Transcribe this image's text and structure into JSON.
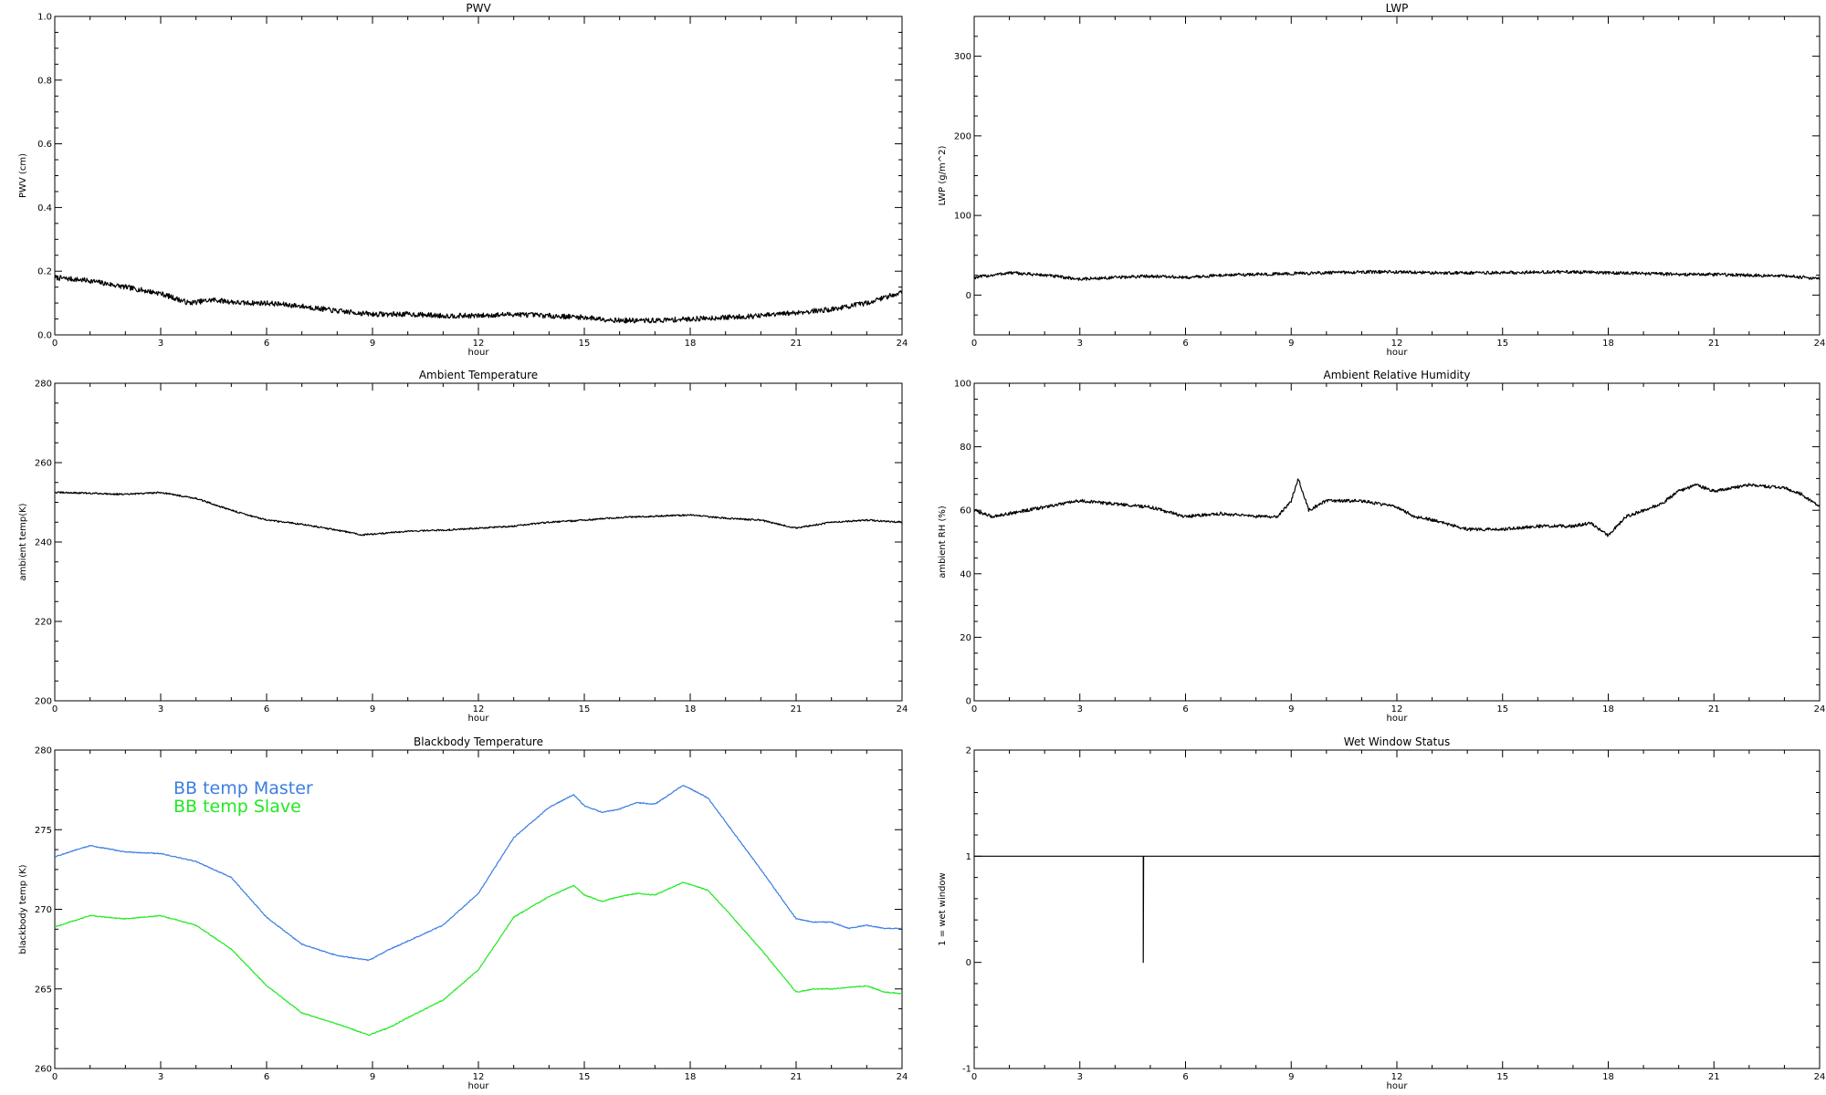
{
  "chart_data": [
    {
      "type": "line",
      "title": "PWV",
      "xlabel": "hour",
      "ylabel": "PWV (cm)",
      "xlim": [
        0,
        24
      ],
      "ylim": [
        0,
        1
      ],
      "x_ticks": [
        0,
        3,
        6,
        9,
        12,
        15,
        18,
        21,
        24
      ],
      "y_ticks": [
        "0.0",
        "0.2",
        "0.4",
        "0.6",
        "0.8",
        "1.0"
      ],
      "noise": 0.008,
      "series": [
        {
          "color": "#000000",
          "x": [
            0,
            1,
            2,
            3,
            3.8,
            4.5,
            5.3,
            6,
            7,
            8,
            9,
            10,
            11,
            12,
            13,
            14,
            15,
            16,
            17,
            18,
            19,
            20,
            21,
            22,
            23,
            24
          ],
          "y": [
            0.18,
            0.17,
            0.15,
            0.13,
            0.1,
            0.11,
            0.1,
            0.1,
            0.09,
            0.075,
            0.065,
            0.065,
            0.06,
            0.06,
            0.065,
            0.06,
            0.055,
            0.045,
            0.045,
            0.05,
            0.055,
            0.06,
            0.07,
            0.08,
            0.1,
            0.135
          ]
        }
      ]
    },
    {
      "type": "line",
      "title": "LWP",
      "xlabel": "hour",
      "ylabel": "LWP (g/m^2)",
      "xlim": [
        0,
        24
      ],
      "ylim": [
        -50,
        350
      ],
      "x_ticks": [
        0,
        3,
        6,
        9,
        12,
        15,
        18,
        21,
        24
      ],
      "y_ticks": [
        "0",
        "100",
        "200",
        "300"
      ],
      "noise": 2,
      "series": [
        {
          "color": "#000000",
          "x": [
            0,
            1,
            2,
            3,
            4,
            5,
            6,
            7,
            8,
            9,
            10,
            11,
            12,
            13,
            14,
            15,
            16,
            17,
            18,
            19,
            20,
            21,
            22,
            23,
            24
          ],
          "y": [
            22,
            28,
            25,
            20,
            22,
            24,
            22,
            25,
            26,
            27,
            28,
            29,
            29,
            28,
            28,
            28,
            29,
            29,
            28,
            27,
            26,
            26,
            25,
            24,
            21
          ]
        }
      ]
    },
    {
      "type": "line",
      "title": "Ambient Temperature",
      "xlabel": "hour",
      "ylabel": "ambient temp(K)",
      "xlim": [
        0,
        24
      ],
      "ylim": [
        200,
        280
      ],
      "x_ticks": [
        0,
        3,
        6,
        9,
        12,
        15,
        18,
        21,
        24
      ],
      "y_ticks": [
        "200",
        "220",
        "240",
        "260",
        "280"
      ],
      "noise": 0.2,
      "series": [
        {
          "color": "#000000",
          "x": [
            0,
            1,
            2,
            3,
            4,
            5,
            6,
            7,
            8,
            8.7,
            9,
            10,
            11,
            12,
            13,
            14,
            15,
            16,
            17,
            18,
            19,
            20,
            21,
            22,
            23,
            24
          ],
          "y": [
            252.5,
            252.3,
            252,
            252.5,
            251,
            248,
            245.5,
            244.5,
            243,
            241.8,
            242,
            242.7,
            243,
            243.5,
            244,
            245,
            245.5,
            246.2,
            246.5,
            246.8,
            246,
            245.5,
            243.5,
            245,
            245.5,
            245
          ]
        }
      ]
    },
    {
      "type": "line",
      "title": "Ambient Relative Humidity",
      "xlabel": "hour",
      "ylabel": "ambient RH (%)",
      "xlim": [
        0,
        24
      ],
      "ylim": [
        0,
        100
      ],
      "x_ticks": [
        0,
        3,
        6,
        9,
        12,
        15,
        18,
        21,
        24
      ],
      "y_ticks": [
        "0",
        "20",
        "40",
        "60",
        "80",
        "100"
      ],
      "noise": 0.5,
      "series": [
        {
          "color": "#000000",
          "x": [
            0,
            0.5,
            1,
            2,
            3,
            4,
            5,
            6,
            7,
            8,
            8.6,
            9,
            9.2,
            9.5,
            10,
            11,
            12,
            12.5,
            13,
            14,
            15,
            16,
            17,
            17.5,
            18,
            18.5,
            19,
            19.5,
            20,
            20.5,
            21,
            22,
            23,
            23.5,
            24
          ],
          "y": [
            60,
            58,
            59,
            61,
            63,
            62,
            61,
            58,
            59,
            58,
            58,
            63,
            70,
            60,
            63,
            63,
            61,
            58,
            57,
            54,
            54,
            55,
            55,
            56,
            52,
            58,
            60,
            62,
            66,
            68,
            66,
            68,
            67,
            65,
            61
          ]
        }
      ]
    },
    {
      "type": "line",
      "title": "Blackbody Temperature",
      "xlabel": "hour",
      "ylabel": "blackbody temp (K)",
      "xlim": [
        0,
        24
      ],
      "ylim": [
        260,
        280
      ],
      "x_ticks": [
        0,
        3,
        6,
        9,
        12,
        15,
        18,
        21,
        24
      ],
      "y_ticks": [
        "260",
        "265",
        "270",
        "275",
        "280"
      ],
      "noise": 0.03,
      "series": [
        {
          "name": "BB temp Master",
          "color": "#3a7ee3",
          "x": [
            0,
            1,
            2,
            3,
            4,
            5,
            6,
            7,
            8,
            8.9,
            9.5,
            10,
            11,
            12,
            13,
            14,
            14.7,
            15,
            15.5,
            16,
            16.5,
            17,
            17.8,
            18.5,
            19,
            20,
            21,
            21.5,
            22,
            22.5,
            23,
            23.5,
            24
          ],
          "y": [
            273.3,
            274,
            273.6,
            273.5,
            273,
            272,
            269.5,
            267.8,
            267.1,
            266.8,
            267.5,
            268,
            269,
            271,
            274.5,
            276.4,
            277.2,
            276.5,
            276.1,
            276.3,
            276.7,
            276.6,
            277.8,
            277,
            275.5,
            272.5,
            269.4,
            269.2,
            269.2,
            268.8,
            269,
            268.8,
            268.8
          ]
        },
        {
          "name": "BB temp Slave",
          "color": "#22e822",
          "x": [
            0,
            1,
            2,
            3,
            4,
            5,
            6,
            7,
            8,
            8.9,
            9.5,
            10,
            11,
            12,
            13,
            14,
            14.7,
            15,
            15.5,
            16,
            16.5,
            17,
            17.8,
            18.5,
            19,
            20,
            21,
            21.5,
            22,
            22.5,
            23,
            23.5,
            24
          ],
          "y": [
            268.9,
            269.6,
            269.4,
            269.6,
            269,
            267.5,
            265.2,
            263.5,
            262.8,
            262.1,
            262.6,
            263.2,
            264.3,
            266.2,
            269.5,
            270.8,
            271.5,
            270.9,
            270.5,
            270.8,
            271,
            270.9,
            271.7,
            271.2,
            270,
            267.5,
            264.8,
            265,
            265,
            265.1,
            265.2,
            264.8,
            264.7
          ]
        }
      ]
    },
    {
      "type": "line",
      "title": "Wet Window Status",
      "xlabel": "hour",
      "ylabel": "1 = wet window",
      "xlim": [
        0,
        24
      ],
      "ylim": [
        -1,
        2
      ],
      "x_ticks": [
        0,
        3,
        6,
        9,
        12,
        15,
        18,
        21,
        24
      ],
      "y_ticks": [
        "-1",
        "0",
        "1",
        "2"
      ],
      "noise": 0,
      "series": [
        {
          "color": "#000000",
          "x": [
            0,
            4.79,
            4.8,
            4.8,
            4.81,
            24
          ],
          "y": [
            1,
            1,
            1,
            0,
            1,
            1
          ]
        }
      ]
    }
  ]
}
